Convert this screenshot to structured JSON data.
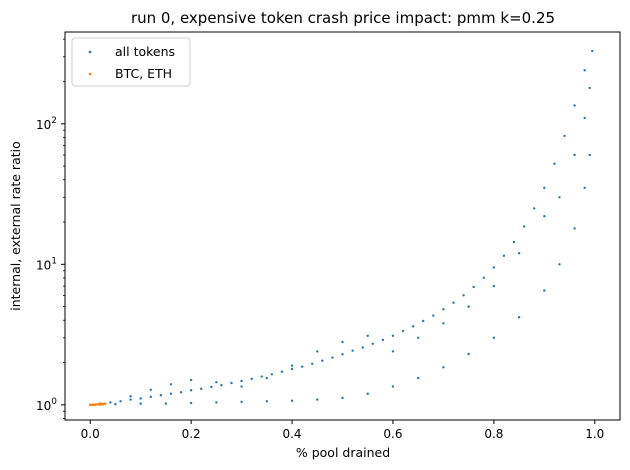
{
  "chart_data": {
    "type": "scatter",
    "title": "run 0, expensive token crash price impact: pmm k=0.25",
    "xlabel": "% pool drained",
    "ylabel": "internal, external rate ratio",
    "xlim": [
      -0.05,
      1.05
    ],
    "ylim": [
      0.78,
      450
    ],
    "yscale": "log",
    "xticks": [
      0.0,
      0.2,
      0.4,
      0.6,
      0.8,
      1.0
    ],
    "xtick_labels": [
      "0.0",
      "0.2",
      "0.4",
      "0.6",
      "0.8",
      "1.0"
    ],
    "yticks": [
      {
        "value": 1,
        "base": "10",
        "exp": "0"
      },
      {
        "value": 10,
        "base": "10",
        "exp": "1"
      },
      {
        "value": 100,
        "base": "10",
        "exp": "2"
      }
    ],
    "legend_position": "top-left",
    "grid": false,
    "series": [
      {
        "name": "all tokens",
        "color": "#1f77b4",
        "points": [
          [
            0.0,
            1.0
          ],
          [
            0.02,
            1.02
          ],
          [
            0.04,
            1.04
          ],
          [
            0.06,
            1.06
          ],
          [
            0.08,
            1.09
          ],
          [
            0.1,
            1.11
          ],
          [
            0.12,
            1.14
          ],
          [
            0.14,
            1.17
          ],
          [
            0.16,
            1.2
          ],
          [
            0.18,
            1.23
          ],
          [
            0.2,
            1.27
          ],
          [
            0.22,
            1.3
          ],
          [
            0.24,
            1.34
          ],
          [
            0.26,
            1.38
          ],
          [
            0.28,
            1.43
          ],
          [
            0.3,
            1.48
          ],
          [
            0.32,
            1.53
          ],
          [
            0.34,
            1.59
          ],
          [
            0.36,
            1.65
          ],
          [
            0.38,
            1.72
          ],
          [
            0.4,
            1.8
          ],
          [
            0.42,
            1.87
          ],
          [
            0.44,
            1.96
          ],
          [
            0.46,
            2.06
          ],
          [
            0.48,
            2.17
          ],
          [
            0.5,
            2.29
          ],
          [
            0.52,
            2.43
          ],
          [
            0.54,
            2.56
          ],
          [
            0.56,
            2.72
          ],
          [
            0.58,
            2.9
          ],
          [
            0.6,
            3.1
          ],
          [
            0.62,
            3.35
          ],
          [
            0.64,
            3.62
          ],
          [
            0.66,
            3.95
          ],
          [
            0.68,
            4.32
          ],
          [
            0.7,
            4.78
          ],
          [
            0.72,
            5.33
          ],
          [
            0.74,
            6.02
          ],
          [
            0.76,
            6.9
          ],
          [
            0.78,
            8.02
          ],
          [
            0.8,
            9.5
          ],
          [
            0.82,
            11.5
          ],
          [
            0.84,
            14.4
          ],
          [
            0.86,
            18.6
          ],
          [
            0.88,
            25.0
          ],
          [
            0.9,
            35.0
          ],
          [
            0.92,
            52.0
          ],
          [
            0.94,
            82.0
          ],
          [
            0.96,
            135
          ],
          [
            0.98,
            240
          ],
          [
            0.995,
            330
          ],
          [
            0.05,
            1.01
          ],
          [
            0.1,
            1.02
          ],
          [
            0.15,
            1.02
          ],
          [
            0.2,
            1.03
          ],
          [
            0.25,
            1.04
          ],
          [
            0.3,
            1.05
          ],
          [
            0.35,
            1.06
          ],
          [
            0.4,
            1.07
          ],
          [
            0.45,
            1.09
          ],
          [
            0.5,
            1.12
          ],
          [
            0.55,
            1.2
          ],
          [
            0.6,
            1.35
          ],
          [
            0.65,
            1.55
          ],
          [
            0.7,
            1.85
          ],
          [
            0.75,
            2.3
          ],
          [
            0.8,
            3.0
          ],
          [
            0.85,
            4.2
          ],
          [
            0.9,
            6.5
          ],
          [
            0.93,
            10.0
          ],
          [
            0.96,
            18.0
          ],
          [
            0.98,
            35.0
          ],
          [
            0.99,
            60.0
          ],
          [
            0.08,
            1.15
          ],
          [
            0.12,
            1.28
          ],
          [
            0.16,
            1.4
          ],
          [
            0.2,
            1.5
          ],
          [
            0.25,
            1.45
          ],
          [
            0.3,
            1.35
          ],
          [
            0.35,
            1.55
          ],
          [
            0.4,
            1.9
          ],
          [
            0.45,
            2.4
          ],
          [
            0.5,
            2.8
          ],
          [
            0.55,
            3.1
          ],
          [
            0.6,
            2.4
          ],
          [
            0.65,
            3.0
          ],
          [
            0.7,
            3.8
          ],
          [
            0.75,
            5.0
          ],
          [
            0.8,
            7.0
          ],
          [
            0.85,
            12.0
          ],
          [
            0.9,
            22.0
          ],
          [
            0.93,
            30.0
          ],
          [
            0.96,
            60.0
          ],
          [
            0.98,
            110
          ],
          [
            0.99,
            180
          ]
        ]
      },
      {
        "name": "BTC, ETH",
        "color": "#ff7f0e",
        "points": [
          [
            0.0,
            1.0
          ],
          [
            0.003,
            1.001
          ],
          [
            0.006,
            1.002
          ],
          [
            0.009,
            1.004
          ],
          [
            0.012,
            1.006
          ],
          [
            0.015,
            1.008
          ],
          [
            0.018,
            1.01
          ],
          [
            0.021,
            1.012
          ],
          [
            0.024,
            1.015
          ],
          [
            0.027,
            1.018
          ],
          [
            0.03,
            1.02
          ],
          [
            0.01,
            1.0
          ],
          [
            0.02,
            1.002
          ],
          [
            0.025,
            1.005
          ],
          [
            0.005,
            0.998
          ]
        ]
      }
    ]
  }
}
